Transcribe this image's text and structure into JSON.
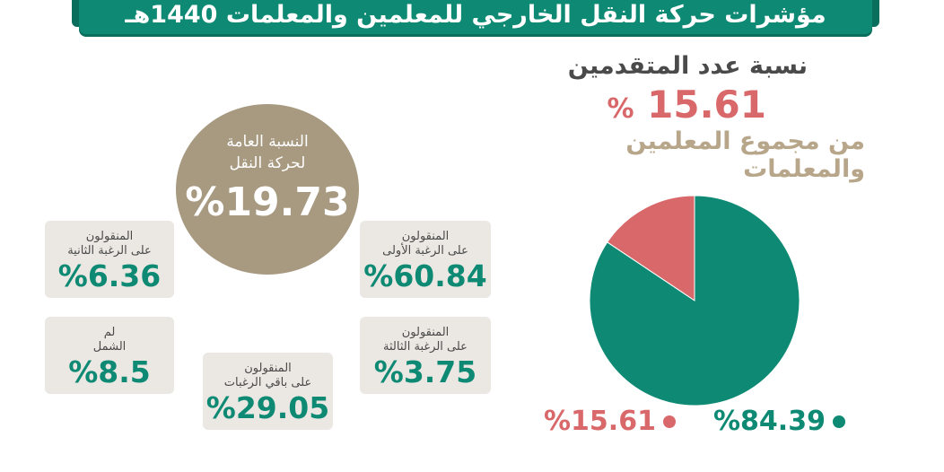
{
  "title": "مؤشرات حركة النقل الخارجي للمعلمين والمعلمات 1440هـ",
  "applicants": {
    "label": "نسبة عدد المتقدمين",
    "value": "15.61",
    "percent_sign": "%",
    "sublabel": "من مجموع المعلمين والمعلمات"
  },
  "overall": {
    "line1": "النسبة العامة",
    "line2": "لحركة النقل",
    "value": "%19.73"
  },
  "cards": {
    "first": {
      "line1": "المنقولون",
      "line2": "على الرغبة الأولى",
      "value": "%60.84"
    },
    "second": {
      "line1": "المنقولون",
      "line2": "على الرغبة الثانية",
      "value": "%6.36"
    },
    "third": {
      "line1": "المنقولون",
      "line2": "على الرغبة الثالثة",
      "value": "%3.75"
    },
    "not_covered": {
      "line1": "لم",
      "line2": "الشمل",
      "value": "%8.5"
    },
    "other": {
      "line1": "المنقولون",
      "line2": "على باقي الرغبات",
      "value": "%29.05"
    }
  },
  "colors": {
    "teal": "#0e8a74",
    "coral": "#d9686a",
    "beige": "#a79a80",
    "card_bg": "#ebe8e3"
  },
  "chart_data": {
    "type": "pie",
    "categories": [
      "",
      ""
    ],
    "values": [
      84.39,
      15.61
    ],
    "colors": [
      "#0e8a74",
      "#d9686a"
    ],
    "legend": [
      "%84.39",
      "%15.61"
    ],
    "legend_position": "bottom"
  }
}
